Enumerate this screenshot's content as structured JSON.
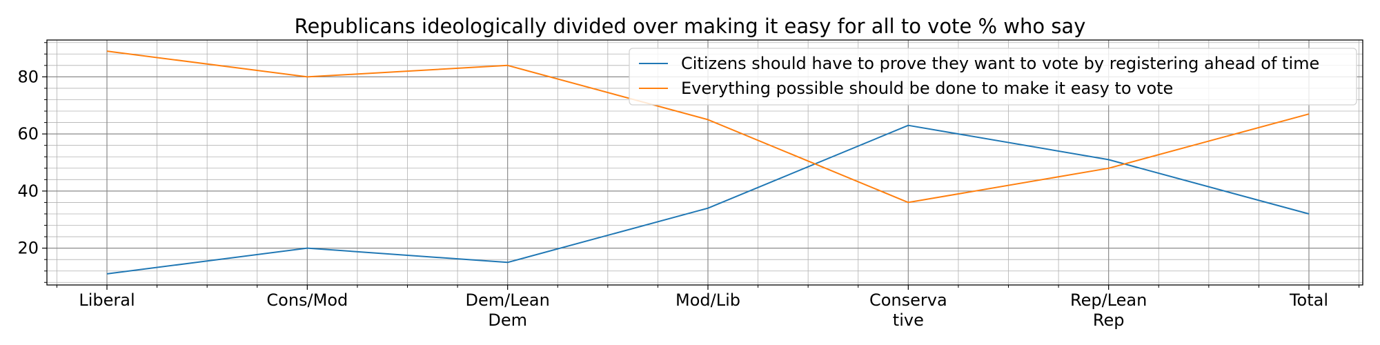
{
  "chart_data": {
    "type": "line",
    "title": "Republicans ideologically divided over making it easy for all to vote % who say",
    "xlabel": "",
    "ylabel": "",
    "categories": [
      [
        "Liberal"
      ],
      [
        "Cons/Mod"
      ],
      [
        "Dem/Lean",
        "Dem"
      ],
      [
        "Mod/Lib"
      ],
      [
        "Conserva",
        "tive"
      ],
      [
        "Rep/Lean",
        "Rep"
      ],
      [
        "Total"
      ]
    ],
    "series": [
      {
        "name": "Citizens should have to prove they want to vote by registering ahead of time",
        "color": "#1f77b4",
        "values": [
          11,
          20,
          15,
          34,
          63,
          51,
          32
        ]
      },
      {
        "name": "Everything possible should be done to make it easy to vote",
        "color": "#ff7f0e",
        "values": [
          89,
          80,
          84,
          65,
          36,
          48,
          67
        ]
      }
    ],
    "ylim": [
      7.1,
      92.9
    ],
    "yticks": [
      20,
      40,
      60,
      80
    ],
    "grid": true,
    "minor_grid": true,
    "legend": "top-right"
  }
}
